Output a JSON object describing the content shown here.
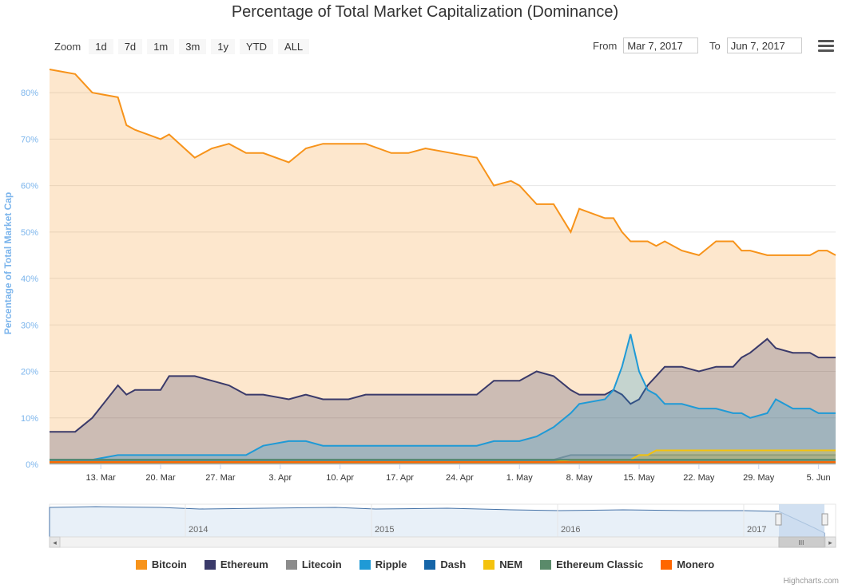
{
  "title": "Percentage of Total Market Capitalization (Dominance)",
  "toolbar": {
    "zoom_label": "Zoom",
    "zoom_buttons": [
      "1d",
      "7d",
      "1m",
      "3m",
      "1y",
      "YTD",
      "ALL"
    ],
    "from_label": "From",
    "from_value": "Mar 7, 2017",
    "to_label": "To",
    "to_value": "Jun 7, 2017"
  },
  "credits": "Highcharts.com",
  "navigator": {
    "years": [
      "2014",
      "2015",
      "2016",
      "2017"
    ],
    "handle_label": "III"
  },
  "chart_data": {
    "type": "area",
    "title": "Percentage of Total Market Capitalization (Dominance)",
    "ylabel": "Percentage of Total Market Cap",
    "ylim": [
      0,
      85
    ],
    "yticks": [
      "0%",
      "10%",
      "20%",
      "30%",
      "40%",
      "50%",
      "60%",
      "70%",
      "80%"
    ],
    "xlim": [
      0,
      92
    ],
    "x_ticks": [
      {
        "label": "13. Mar",
        "day": 6
      },
      {
        "label": "20. Mar",
        "day": 13
      },
      {
        "label": "27. Mar",
        "day": 20
      },
      {
        "label": "3. Apr",
        "day": 27
      },
      {
        "label": "10. Apr",
        "day": 34
      },
      {
        "label": "17. Apr",
        "day": 41
      },
      {
        "label": "24. Apr",
        "day": 48
      },
      {
        "label": "1. May",
        "day": 55
      },
      {
        "label": "8. May",
        "day": 62
      },
      {
        "label": "15. May",
        "day": 69
      },
      {
        "label": "22. May",
        "day": 76
      },
      {
        "label": "29. May",
        "day": 83
      },
      {
        "label": "5. Jun",
        "day": 90
      }
    ],
    "x_days": [
      0,
      3,
      5,
      8,
      9,
      10,
      13,
      14,
      17,
      19,
      21,
      23,
      25,
      28,
      30,
      32,
      35,
      37,
      40,
      42,
      44,
      47,
      50,
      52,
      54,
      55,
      57,
      59,
      61,
      62,
      65,
      66,
      67,
      68,
      69,
      70,
      71,
      72,
      74,
      76,
      78,
      80,
      81,
      82,
      84,
      85,
      87,
      89,
      90,
      91,
      92
    ],
    "series": [
      {
        "name": "Bitcoin",
        "color": "#f7931a",
        "values": [
          85,
          84,
          80,
          79,
          73,
          72,
          70,
          71,
          66,
          68,
          69,
          67,
          67,
          65,
          68,
          69,
          69,
          69,
          67,
          67,
          68,
          67,
          66,
          60,
          61,
          60,
          56,
          56,
          50,
          55,
          53,
          53,
          50,
          48,
          48,
          48,
          47,
          48,
          46,
          45,
          48,
          48,
          46,
          46,
          45,
          45,
          45,
          45,
          46,
          46,
          45
        ]
      },
      {
        "name": "Ethereum",
        "color": "#3a3a6a",
        "values": [
          7,
          7,
          10,
          17,
          15,
          16,
          16,
          19,
          19,
          18,
          17,
          15,
          15,
          14,
          15,
          14,
          14,
          15,
          15,
          15,
          15,
          15,
          15,
          18,
          18,
          18,
          20,
          19,
          16,
          15,
          15,
          16,
          15,
          13,
          14,
          17,
          19,
          21,
          21,
          20,
          21,
          21,
          23,
          24,
          27,
          25,
          24,
          24,
          23,
          23,
          23
        ]
      },
      {
        "name": "Litecoin",
        "color": "#8c8c8c",
        "values": [
          1,
          1,
          1,
          1,
          1,
          1,
          1,
          1,
          1,
          1,
          1,
          1,
          1,
          1,
          1,
          1,
          1,
          1,
          1,
          1,
          1,
          1,
          1,
          1,
          1,
          1,
          1,
          1,
          2,
          2,
          2,
          2,
          2,
          2,
          2,
          2,
          2,
          2,
          2,
          2,
          2,
          2,
          2,
          2,
          2,
          2,
          2,
          2,
          2,
          2,
          2
        ]
      },
      {
        "name": "Ripple",
        "color": "#1f9ad6",
        "values": [
          1,
          1,
          1,
          2,
          2,
          2,
          2,
          2,
          2,
          2,
          2,
          2,
          4,
          5,
          5,
          4,
          4,
          4,
          4,
          4,
          4,
          4,
          4,
          5,
          5,
          5,
          6,
          8,
          11,
          13,
          14,
          16,
          21,
          28,
          20,
          16,
          15,
          13,
          13,
          12,
          12,
          11,
          11,
          10,
          11,
          14,
          12,
          12,
          11,
          11,
          11
        ]
      },
      {
        "name": "Dash",
        "color": "#1565a8",
        "values": [
          1,
          1,
          1,
          1,
          1,
          1,
          1,
          1,
          1,
          1,
          1,
          1,
          1,
          1,
          1,
          1,
          1,
          1,
          1,
          1,
          1,
          1,
          1,
          1,
          1,
          1,
          1,
          1,
          1,
          1,
          1,
          1,
          1,
          1,
          1,
          1,
          1,
          1,
          1,
          1,
          1,
          1,
          1,
          1,
          1,
          1,
          1,
          1,
          1,
          1,
          1
        ]
      },
      {
        "name": "NEM",
        "color": "#f4c20d",
        "values": [
          0.5,
          0.5,
          0.5,
          0.5,
          0.5,
          0.5,
          0.5,
          0.5,
          0.5,
          0.5,
          0.5,
          0.5,
          0.5,
          0.5,
          0.5,
          0.5,
          0.5,
          0.5,
          0.5,
          0.5,
          0.5,
          0.5,
          0.5,
          0.5,
          0.5,
          0.5,
          0.5,
          0.5,
          1,
          1,
          1,
          1,
          1,
          1,
          2,
          2,
          3,
          3,
          3,
          3,
          3,
          3,
          3,
          3,
          3,
          3,
          3,
          3,
          3,
          3,
          3
        ]
      },
      {
        "name": "Ethereum Classic",
        "color": "#5a8a6a",
        "values": [
          1,
          1,
          1,
          1,
          1,
          1,
          1,
          1,
          1,
          1,
          1,
          1,
          1,
          1,
          1,
          1,
          1,
          1,
          1,
          1,
          1,
          1,
          1,
          1,
          1,
          1,
          1,
          1,
          1,
          1,
          1,
          1,
          1,
          1,
          1,
          1,
          1,
          1,
          1,
          1,
          1,
          1,
          1,
          1,
          1,
          1,
          1,
          1,
          1,
          1,
          1
        ]
      },
      {
        "name": "Monero",
        "color": "#ff6600",
        "values": [
          0.5,
          0.5,
          0.5,
          0.5,
          0.5,
          0.5,
          0.5,
          0.5,
          0.5,
          0.5,
          0.5,
          0.5,
          0.5,
          0.5,
          0.5,
          0.5,
          0.5,
          0.5,
          0.5,
          0.5,
          0.5,
          0.5,
          0.5,
          0.5,
          0.5,
          0.5,
          0.5,
          0.5,
          0.5,
          0.5,
          0.5,
          0.5,
          0.5,
          0.5,
          0.5,
          0.5,
          0.5,
          0.5,
          0.5,
          0.5,
          0.5,
          0.5,
          0.5,
          0.5,
          0.5,
          0.5,
          0.5,
          0.5,
          0.5,
          0.5,
          0.5
        ]
      }
    ],
    "legend_position": "bottom"
  }
}
